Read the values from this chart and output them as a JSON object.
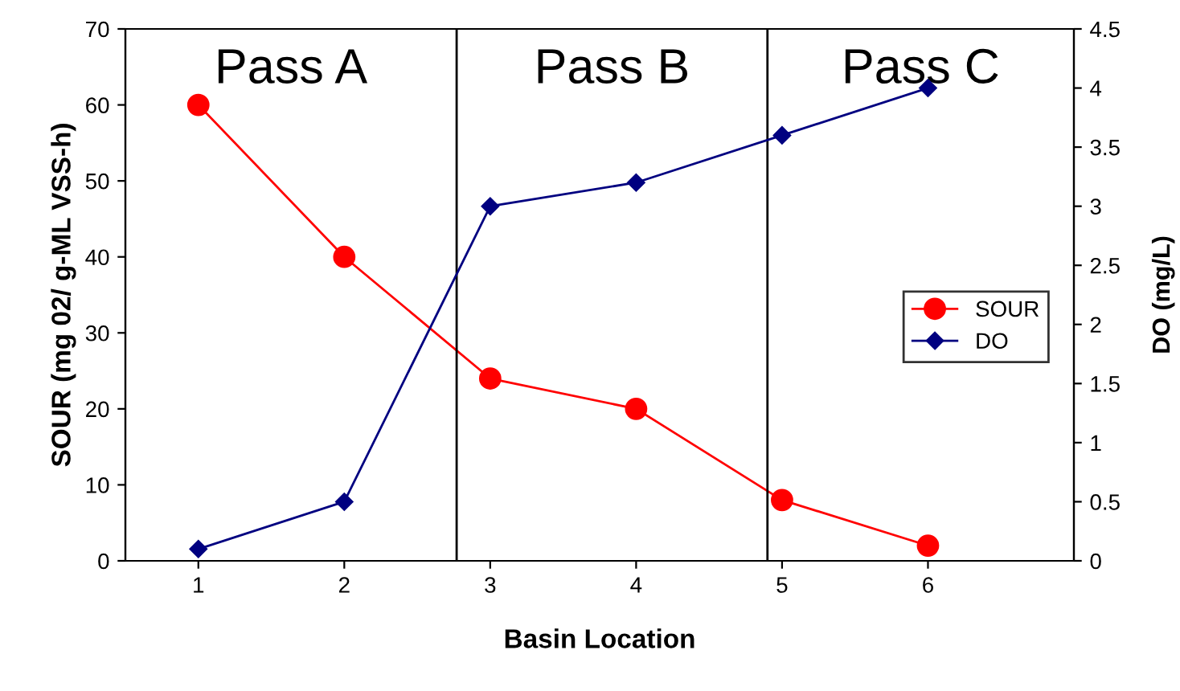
{
  "chart_data": {
    "type": "line",
    "xlabel": "Basin Location",
    "ylabel": "SOUR (mg 02/ g-ML VSS-h)",
    "y2label": "DO (mg/L)",
    "x": [
      1,
      2,
      3,
      4,
      5,
      6
    ],
    "xlim": [
      0.5,
      7
    ],
    "xticks": [
      1,
      2,
      3,
      4,
      5,
      6
    ],
    "ylim": [
      0,
      70
    ],
    "yticks": [
      0,
      10,
      20,
      30,
      40,
      50,
      60,
      70
    ],
    "y2lim": [
      0,
      4.5
    ],
    "y2ticks": [
      0,
      0.5,
      1,
      1.5,
      2,
      2.5,
      3,
      3.5,
      4,
      4.5
    ],
    "series": [
      {
        "name": "SOUR",
        "color": "#ff0000",
        "marker": "circle",
        "values": [
          60,
          40,
          24,
          20,
          8,
          2
        ]
      },
      {
        "name": "DO",
        "color": "#000080",
        "marker": "diamond",
        "axis": "y2",
        "values": [
          0.1,
          0.5,
          3.0,
          3.2,
          3.6,
          4.0
        ]
      }
    ],
    "ref_lines": [
      {
        "axis": "x",
        "value": 2.77,
        "color": "#000000"
      },
      {
        "axis": "x",
        "value": 4.9,
        "color": "#000000"
      }
    ],
    "annotations": [
      "Pass A",
      "Pass B",
      "Pass C"
    ],
    "legend": "center right",
    "grid": false
  }
}
